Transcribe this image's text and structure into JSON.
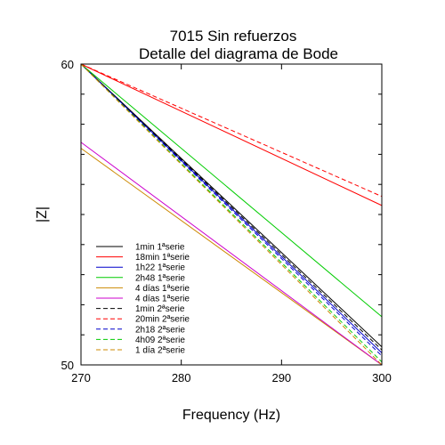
{
  "chart_data": {
    "type": "line",
    "title": "7015 Sin refuerzos",
    "subtitle": "Detalle del diagrama de Bode",
    "xlabel": "Frequency (Hz)",
    "ylabel": "|Z|",
    "xlim": [
      270,
      300
    ],
    "ylim": [
      50,
      60
    ],
    "x_ticks": [
      "270",
      "280",
      "290",
      "300"
    ],
    "y_ticks": [
      "50",
      "60"
    ],
    "grid": false,
    "legend_position": "bottom-left inside plot",
    "series": [
      {
        "name": "1min 1ªserie",
        "color": "#000000",
        "dash": "solid",
        "x": [
          270,
          300
        ],
        "y": [
          60.0,
          50.6
        ]
      },
      {
        "name": "18min 1ªserie",
        "color": "#ff0000",
        "dash": "solid",
        "x": [
          270,
          300
        ],
        "y": [
          60.0,
          55.3
        ]
      },
      {
        "name": "1h22 1ªserie",
        "color": "#0000cc",
        "dash": "solid",
        "x": [
          270,
          300
        ],
        "y": [
          60.0,
          50.4
        ]
      },
      {
        "name": "2h48 1ªserie",
        "color": "#00cc00",
        "dash": "solid",
        "x": [
          270,
          300
        ],
        "y": [
          60.0,
          51.6
        ]
      },
      {
        "name": "4 días 1ªserie",
        "color": "#cc8800",
        "dash": "solid",
        "x": [
          270,
          300
        ],
        "y": [
          57.2,
          50.0
        ]
      },
      {
        "name": "4 días 1ªserie",
        "color": "#cc00cc",
        "dash": "solid",
        "x": [
          270,
          300
        ],
        "y": [
          57.4,
          50.0
        ]
      },
      {
        "name": "1min 2ªserie",
        "color": "#000000",
        "dash": "dashed",
        "x": [
          270,
          300
        ],
        "y": [
          60.0,
          50.5
        ]
      },
      {
        "name": "20min 2ªserie",
        "color": "#ff0000",
        "dash": "dashed",
        "x": [
          270,
          300
        ],
        "y": [
          60.0,
          55.6
        ]
      },
      {
        "name": "2h18 2ªserie",
        "color": "#0000cc",
        "dash": "dashed",
        "x": [
          270,
          300
        ],
        "y": [
          60.0,
          50.3
        ]
      },
      {
        "name": "4h09 2ªserie",
        "color": "#00cc00",
        "dash": "dashed",
        "x": [
          270,
          300
        ],
        "y": [
          60.0,
          50.1
        ]
      },
      {
        "name": "1 día 2ªserie",
        "color": "#cc8800",
        "dash": "dashed",
        "x": [
          270,
          300
        ],
        "y": [
          60.0,
          50.0
        ]
      }
    ]
  }
}
